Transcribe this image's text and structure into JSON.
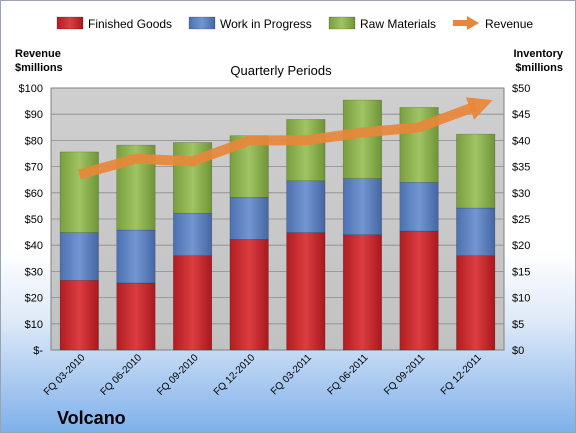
{
  "company": "Volcano",
  "colors": {
    "finished": "#c0282d",
    "wip": "#5b7fbf",
    "raw": "#8bb04f",
    "revenue": "#e8873a",
    "plot_bg": "#c6c6c6"
  },
  "chart_data": {
    "type": "bar",
    "stacked": true,
    "title": "Quarterly Periods",
    "y_left_label": [
      "Revenue",
      "$millions"
    ],
    "y_right_label": [
      "Inventory",
      "$millions"
    ],
    "categories": [
      "FQ 03-2010",
      "FQ 06-2010",
      "FQ 09-2010",
      "FQ 12-2010",
      "FQ 03-2011",
      "FQ 06-2011",
      "FQ 09-2011",
      "FQ 12-2011"
    ],
    "left_ticks": [
      "$-",
      "$10",
      "$20",
      "$30",
      "$40",
      "$50",
      "$60",
      "$70",
      "$80",
      "$90",
      "$100"
    ],
    "right_ticks": [
      "$0",
      "$5",
      "$10",
      "$15",
      "$20",
      "$25",
      "$30",
      "$35",
      "$40",
      "$45",
      "$50"
    ],
    "left_axis": {
      "min": 0,
      "max": 100
    },
    "right_axis": {
      "min": 0,
      "max": 50
    },
    "legend_position": "top",
    "grid": true,
    "inventory_series": [
      {
        "name": "Finished Goods",
        "axis": "right",
        "values": [
          13.3,
          12.8,
          18.0,
          21.1,
          22.4,
          22.0,
          22.7,
          18.0
        ]
      },
      {
        "name": "Work in Progress",
        "axis": "right",
        "values": [
          9.1,
          10.1,
          8.1,
          8.0,
          9.9,
          10.7,
          9.3,
          9.1
        ]
      },
      {
        "name": "Raw Materials",
        "axis": "right",
        "values": [
          15.4,
          16.2,
          13.5,
          11.8,
          11.7,
          15.0,
          14.3,
          14.1
        ]
      }
    ],
    "revenue_series": {
      "name": "Revenue",
      "axis": "left",
      "type": "line",
      "values": [
        67,
        73,
        72,
        80,
        80,
        83,
        85,
        93
      ]
    }
  }
}
